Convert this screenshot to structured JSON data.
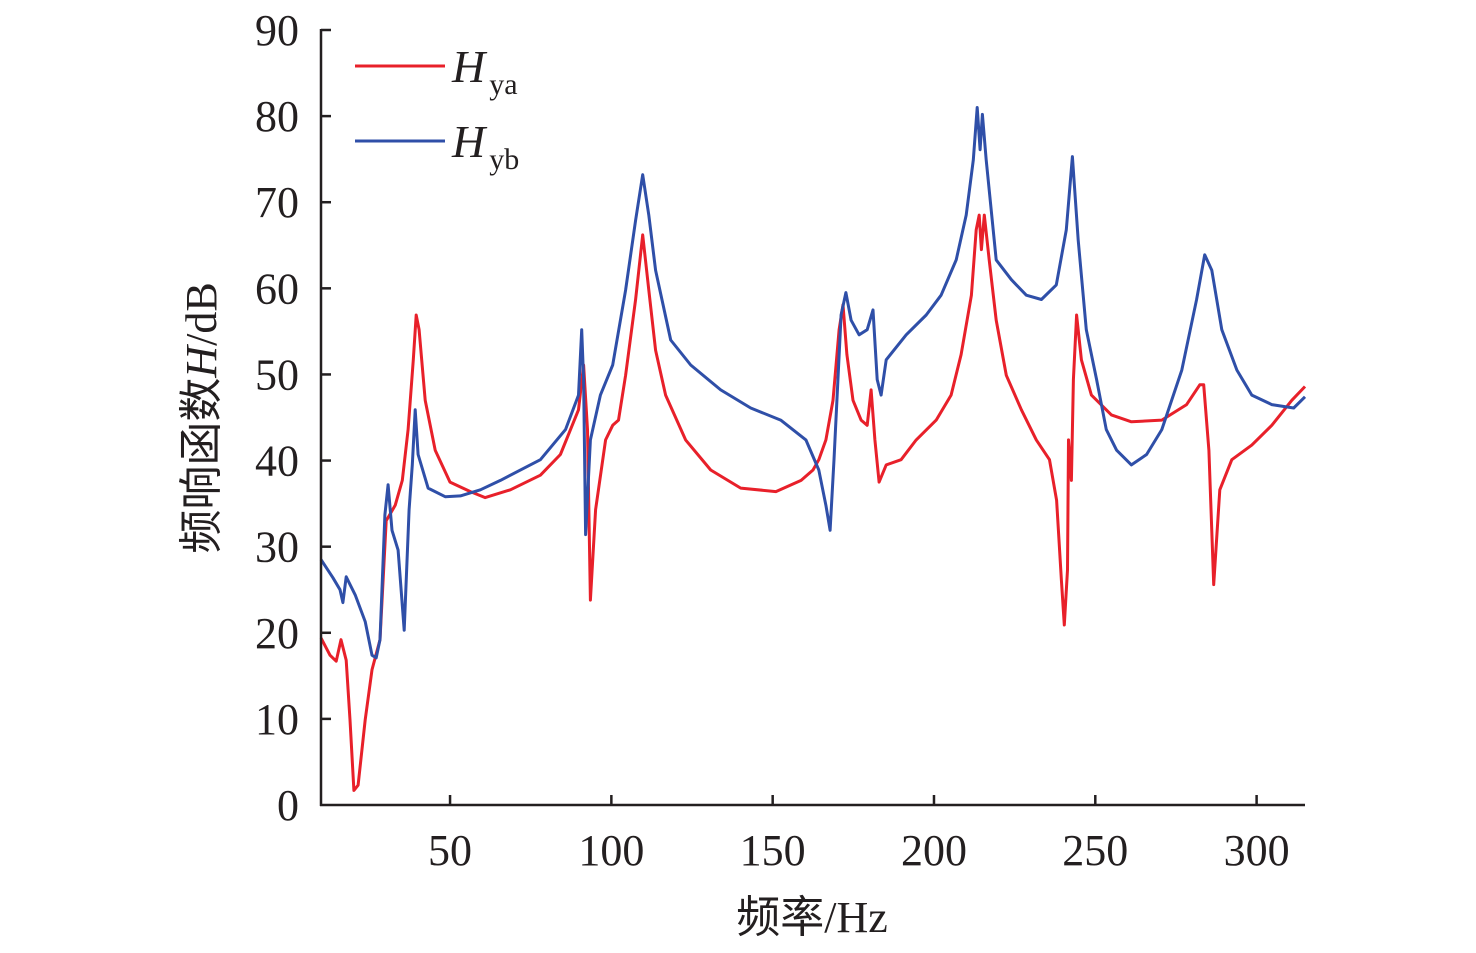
{
  "chart_data": {
    "type": "line",
    "title": "",
    "xlabel": {
      "prefix": "频率",
      "unit": "/Hz"
    },
    "ylabel": {
      "prefix": "频响函数",
      "var": "H",
      "unit": "/dB"
    },
    "xlim": [
      10,
      315
    ],
    "ylim": [
      0,
      90
    ],
    "xticks": [
      50,
      100,
      150,
      200,
      250,
      300
    ],
    "yticks": [
      0,
      10,
      20,
      30,
      40,
      50,
      60,
      70,
      80,
      90
    ],
    "grid": false,
    "legend_position": "top-left",
    "series": [
      {
        "name": "H",
        "sub": "ya",
        "color": "#e8202a",
        "points": [
          [
            10,
            19.4
          ],
          [
            12.8,
            17.4
          ],
          [
            14.7,
            16.7
          ],
          [
            16.2,
            19.2
          ],
          [
            17.8,
            16.8
          ],
          [
            19,
            9.9
          ],
          [
            20.2,
            1.7
          ],
          [
            21.5,
            2.3
          ],
          [
            23.7,
            9.9
          ],
          [
            25.8,
            15.7
          ],
          [
            28.3,
            19.2
          ],
          [
            30.2,
            33
          ],
          [
            33,
            34.8
          ],
          [
            35.2,
            37.7
          ],
          [
            37,
            43.6
          ],
          [
            38.6,
            51.7
          ],
          [
            39.5,
            56.9
          ],
          [
            40.4,
            55.2
          ],
          [
            42.3,
            47
          ],
          [
            45.4,
            41.2
          ],
          [
            50,
            37.5
          ],
          [
            56.3,
            36.4
          ],
          [
            60.9,
            35.7
          ],
          [
            68.7,
            36.6
          ],
          [
            78,
            38.3
          ],
          [
            84.2,
            40.7
          ],
          [
            89.8,
            45.9
          ],
          [
            91.4,
            51.1
          ],
          [
            92.6,
            43.6
          ],
          [
            93.5,
            23.8
          ],
          [
            95.1,
            34.3
          ],
          [
            98.2,
            42.4
          ],
          [
            100.4,
            44.1
          ],
          [
            102.2,
            44.7
          ],
          [
            104.4,
            49.9
          ],
          [
            107.5,
            58.7
          ],
          [
            109.7,
            66.2
          ],
          [
            111.6,
            59.8
          ],
          [
            113.7,
            52.8
          ],
          [
            116.8,
            47.6
          ],
          [
            123,
            42.4
          ],
          [
            130.8,
            38.9
          ],
          [
            140.1,
            36.8
          ],
          [
            151,
            36.4
          ],
          [
            158.8,
            37.7
          ],
          [
            162.5,
            38.9
          ],
          [
            164.3,
            40.1
          ],
          [
            166.5,
            42.4
          ],
          [
            168.7,
            47
          ],
          [
            170.6,
            55.2
          ],
          [
            171.8,
            58.1
          ],
          [
            173,
            52.3
          ],
          [
            174.9,
            47
          ],
          [
            177.4,
            44.7
          ],
          [
            179.3,
            44.1
          ],
          [
            180.5,
            48.2
          ],
          [
            181.7,
            42.4
          ],
          [
            183,
            37.5
          ],
          [
            185.2,
            39.5
          ],
          [
            189.8,
            40.1
          ],
          [
            194.5,
            42.4
          ],
          [
            200.7,
            44.7
          ],
          [
            205.3,
            47.6
          ],
          [
            208.4,
            52.3
          ],
          [
            211.6,
            59.2
          ],
          [
            213.1,
            66.8
          ],
          [
            214,
            68.5
          ],
          [
            214.7,
            64.5
          ],
          [
            215.6,
            68.5
          ],
          [
            217.1,
            63.3
          ],
          [
            219.3,
            56.3
          ],
          [
            222.4,
            49.9
          ],
          [
            227.1,
            45.9
          ],
          [
            231.7,
            42.4
          ],
          [
            235.8,
            40.1
          ],
          [
            238,
            35.4
          ],
          [
            239.5,
            26.1
          ],
          [
            240.4,
            20.9
          ],
          [
            241.4,
            27.3
          ],
          [
            241.7,
            42.4
          ],
          [
            242.6,
            37.7
          ],
          [
            243.2,
            49.4
          ],
          [
            244.2,
            56.9
          ],
          [
            245.7,
            51.7
          ],
          [
            248.8,
            47.6
          ],
          [
            255,
            45.3
          ],
          [
            261.2,
            44.5
          ],
          [
            270.6,
            44.7
          ],
          [
            278.3,
            46.5
          ],
          [
            282.4,
            48.8
          ],
          [
            283.6,
            48.8
          ],
          [
            285.2,
            41.2
          ],
          [
            286.7,
            25.6
          ],
          [
            288.6,
            36.6
          ],
          [
            292.3,
            40.1
          ],
          [
            298.5,
            41.8
          ],
          [
            304.7,
            44.1
          ],
          [
            310.9,
            47
          ],
          [
            315,
            48.6
          ]
        ]
      },
      {
        "name": "H",
        "sub": "yb",
        "color": "#2f4fa8",
        "points": [
          [
            10,
            28.5
          ],
          [
            13.7,
            26.4
          ],
          [
            15.9,
            25
          ],
          [
            16.8,
            23.5
          ],
          [
            17.8,
            26.5
          ],
          [
            20.6,
            24.4
          ],
          [
            23.7,
            21.3
          ],
          [
            25.8,
            17.4
          ],
          [
            27.1,
            17.1
          ],
          [
            28.3,
            19.2
          ],
          [
            29.8,
            33.7
          ],
          [
            30.8,
            37.2
          ],
          [
            32,
            31.9
          ],
          [
            33.9,
            29.6
          ],
          [
            35.8,
            20.3
          ],
          [
            37.3,
            34.3
          ],
          [
            38.3,
            39.5
          ],
          [
            39.2,
            45.9
          ],
          [
            40.1,
            40.7
          ],
          [
            43.2,
            36.8
          ],
          [
            48.5,
            35.8
          ],
          [
            53.2,
            35.9
          ],
          [
            59.4,
            36.6
          ],
          [
            65.6,
            37.7
          ],
          [
            78,
            40.1
          ],
          [
            85.8,
            43.6
          ],
          [
            89.8,
            47.6
          ],
          [
            90.8,
            55.2
          ],
          [
            91.4,
            49.4
          ],
          [
            92,
            31.4
          ],
          [
            93.5,
            42.4
          ],
          [
            96.6,
            47.6
          ],
          [
            100.4,
            51.1
          ],
          [
            104.4,
            59.8
          ],
          [
            107.5,
            67.9
          ],
          [
            109.7,
            73.2
          ],
          [
            111.6,
            68.5
          ],
          [
            113.7,
            62.1
          ],
          [
            118.4,
            54
          ],
          [
            124.6,
            51.1
          ],
          [
            133.9,
            48.2
          ],
          [
            143.2,
            46.1
          ],
          [
            152.5,
            44.7
          ],
          [
            160.3,
            42.4
          ],
          [
            164.3,
            38.9
          ],
          [
            166.5,
            34.8
          ],
          [
            167.8,
            31.9
          ],
          [
            169,
            40.1
          ],
          [
            171.2,
            56.9
          ],
          [
            172.7,
            59.5
          ],
          [
            174.3,
            56.3
          ],
          [
            176.8,
            54.6
          ],
          [
            179.3,
            55.2
          ],
          [
            181.1,
            57.5
          ],
          [
            182.4,
            49.4
          ],
          [
            183.6,
            47.6
          ],
          [
            185.2,
            51.7
          ],
          [
            191.4,
            54.6
          ],
          [
            197.6,
            56.9
          ],
          [
            202.2,
            59.2
          ],
          [
            206.9,
            63.3
          ],
          [
            210,
            68.5
          ],
          [
            212.2,
            74.9
          ],
          [
            213.4,
            81
          ],
          [
            214.3,
            76.1
          ],
          [
            215,
            80.2
          ],
          [
            216.2,
            74.9
          ],
          [
            219.3,
            63.3
          ],
          [
            224,
            61
          ],
          [
            228.6,
            59.2
          ],
          [
            233.3,
            58.7
          ],
          [
            237.9,
            60.4
          ],
          [
            241,
            66.8
          ],
          [
            242.9,
            75.3
          ],
          [
            244.7,
            65.6
          ],
          [
            247.2,
            55.2
          ],
          [
            250.4,
            49.4
          ],
          [
            253.4,
            43.6
          ],
          [
            256.6,
            41.2
          ],
          [
            261.2,
            39.5
          ],
          [
            265.9,
            40.7
          ],
          [
            270.6,
            43.6
          ],
          [
            276.8,
            50.5
          ],
          [
            281.4,
            58.7
          ],
          [
            283.9,
            63.9
          ],
          [
            286.1,
            62.1
          ],
          [
            289.2,
            55.2
          ],
          [
            293.9,
            50.5
          ],
          [
            298.5,
            47.6
          ],
          [
            304.7,
            46.5
          ],
          [
            311.5,
            46.1
          ],
          [
            315,
            47.4
          ]
        ]
      }
    ]
  }
}
